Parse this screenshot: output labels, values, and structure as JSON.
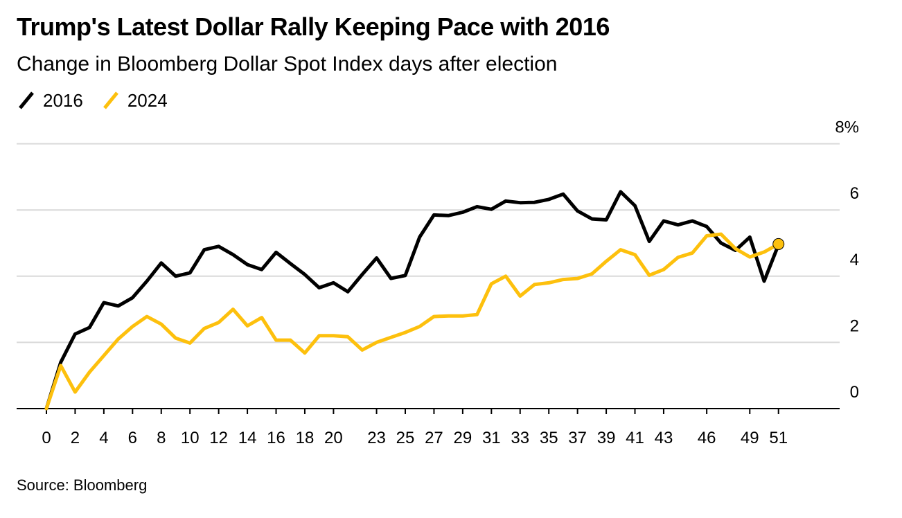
{
  "chart_data": {
    "type": "line",
    "title": "Trump's Latest Dollar Rally Keeping Pace with 2016",
    "subtitle": "Change in Bloomberg Dollar Spot Index days after election",
    "source": "Source: Bloomberg",
    "ylabel": "",
    "xlabel": "",
    "xlim": [
      0,
      55.5
    ],
    "ylim": [
      0,
      8
    ],
    "y_unit": "%",
    "grid": true,
    "legend_position": "top-left",
    "y_ticks": [
      {
        "value": 0,
        "label": "0"
      },
      {
        "value": 2,
        "label": "2"
      },
      {
        "value": 4,
        "label": "4"
      },
      {
        "value": 6,
        "label": "6"
      },
      {
        "value": 8,
        "label": "8%"
      }
    ],
    "x_ticks": [
      {
        "value": 0,
        "label": "0"
      },
      {
        "value": 2,
        "label": "2"
      },
      {
        "value": 4,
        "label": "4"
      },
      {
        "value": 6,
        "label": "6"
      },
      {
        "value": 8,
        "label": "8"
      },
      {
        "value": 10,
        "label": "10"
      },
      {
        "value": 12,
        "label": "12"
      },
      {
        "value": 14,
        "label": "14"
      },
      {
        "value": 16,
        "label": "16"
      },
      {
        "value": 18,
        "label": "18"
      },
      {
        "value": 20,
        "label": "20"
      },
      {
        "value": 23,
        "label": "23"
      },
      {
        "value": 25,
        "label": "25"
      },
      {
        "value": 27,
        "label": "27"
      },
      {
        "value": 29,
        "label": "29"
      },
      {
        "value": 31,
        "label": "31"
      },
      {
        "value": 33,
        "label": "33"
      },
      {
        "value": 35,
        "label": "35"
      },
      {
        "value": 37,
        "label": "37"
      },
      {
        "value": 39,
        "label": "39"
      },
      {
        "value": 41,
        "label": "41"
      },
      {
        "value": 43,
        "label": "43"
      },
      {
        "value": 46,
        "label": "46"
      },
      {
        "value": 49,
        "label": "49"
      },
      {
        "value": 51,
        "label": "51"
      }
    ],
    "series": [
      {
        "name": "2016",
        "color": "#000000",
        "x": [
          0,
          1,
          2,
          3,
          4,
          5,
          6,
          7,
          8,
          9,
          10,
          11,
          12,
          13,
          14,
          15,
          16,
          17,
          18,
          19,
          20,
          21,
          22,
          23,
          24,
          25,
          26,
          27,
          28,
          29,
          30,
          31,
          32,
          33,
          34,
          35,
          36,
          37,
          38,
          39,
          40,
          41,
          42,
          43,
          44,
          45,
          46,
          47,
          48,
          49,
          50,
          51
        ],
        "values": [
          0,
          1.4,
          2.25,
          2.45,
          3.2,
          3.1,
          3.35,
          3.85,
          4.4,
          4,
          4.1,
          4.8,
          4.9,
          4.65,
          4.35,
          4.2,
          4.72,
          4.38,
          4.05,
          3.65,
          3.8,
          3.53,
          4.05,
          4.55,
          3.93,
          4.02,
          5.18,
          5.85,
          5.83,
          5.93,
          6.1,
          6.02,
          6.27,
          6.22,
          6.23,
          6.32,
          6.48,
          5.97,
          5.73,
          5.7,
          6.55,
          6.13,
          5.05,
          5.67,
          5.55,
          5.67,
          5.5,
          5.0,
          4.78,
          5.18,
          3.85,
          4.95
        ]
      },
      {
        "name": "2024",
        "color": "#fdc00d",
        "x": [
          0,
          1,
          2,
          3,
          4,
          5,
          6,
          7,
          8,
          9,
          10,
          11,
          12,
          13,
          14,
          15,
          16,
          17,
          18,
          19,
          20,
          21,
          22,
          23,
          24,
          25,
          26,
          27,
          28,
          29,
          30,
          31,
          32,
          33,
          34,
          35,
          36,
          37,
          38,
          39,
          40,
          41,
          42,
          43,
          44,
          45,
          46,
          47,
          48,
          49,
          50,
          51
        ],
        "values": [
          0,
          1.3,
          0.5,
          1.1,
          1.6,
          2.1,
          2.48,
          2.78,
          2.55,
          2.13,
          1.98,
          2.42,
          2.6,
          3.0,
          2.5,
          2.75,
          2.07,
          2.07,
          1.68,
          2.2,
          2.2,
          2.17,
          1.77,
          2.0,
          2.15,
          2.3,
          2.48,
          2.78,
          2.8,
          2.8,
          2.84,
          3.77,
          4.0,
          3.4,
          3.75,
          3.8,
          3.9,
          3.93,
          4.07,
          4.45,
          4.8,
          4.65,
          4.03,
          4.2,
          4.57,
          4.7,
          5.22,
          5.27,
          4.83,
          4.58,
          4.73,
          4.97
        ]
      }
    ],
    "end_marker_series": "2024"
  }
}
